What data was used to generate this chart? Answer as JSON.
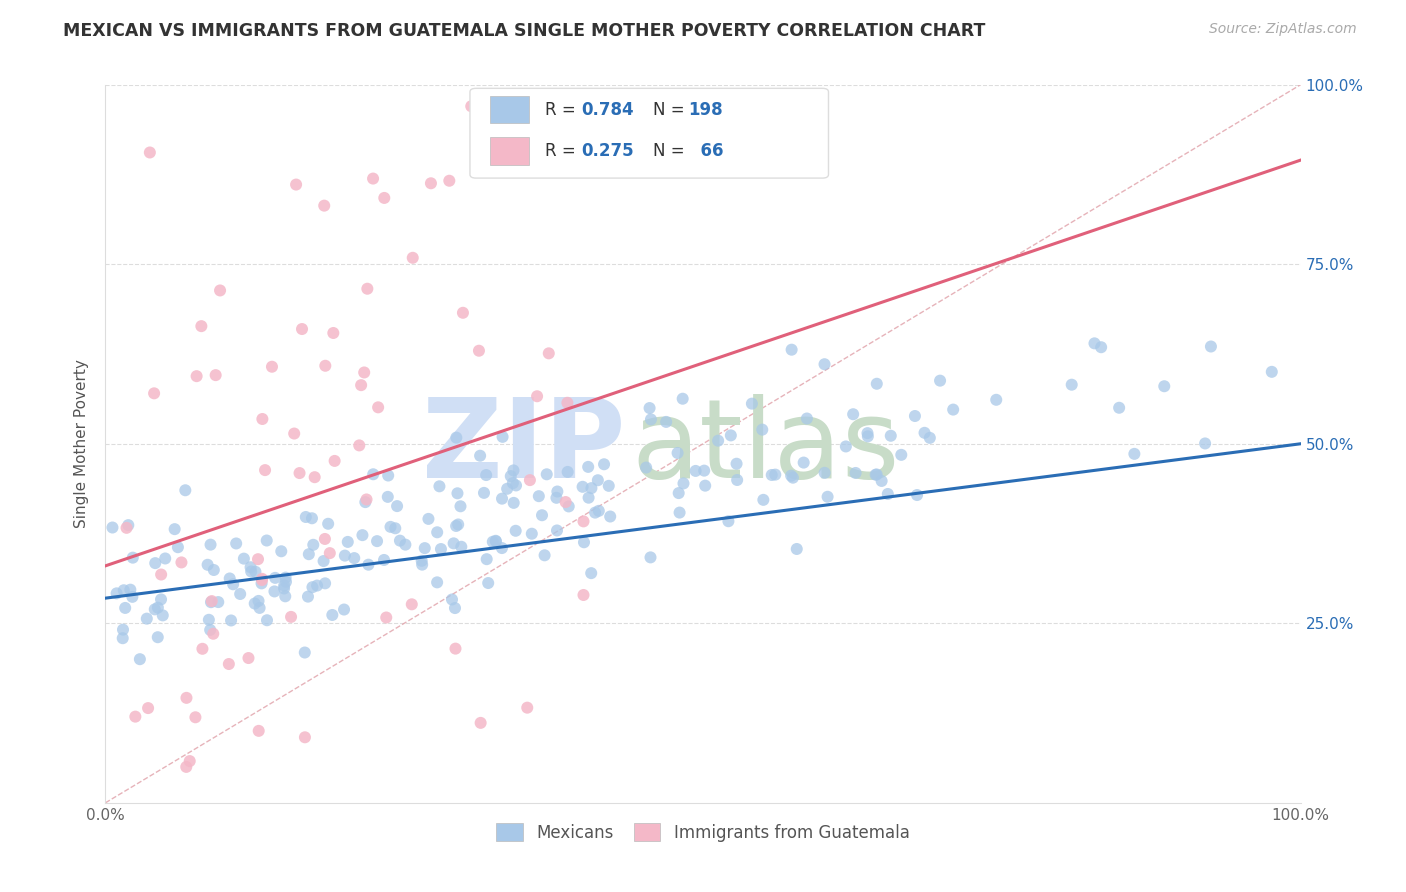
{
  "title": "MEXICAN VS IMMIGRANTS FROM GUATEMALA SINGLE MOTHER POVERTY CORRELATION CHART",
  "source": "Source: ZipAtlas.com",
  "ylabel": "Single Mother Poverty",
  "xlim": [
    0,
    1
  ],
  "ylim": [
    0,
    1
  ],
  "blue_R": 0.784,
  "blue_N": 198,
  "pink_R": 0.275,
  "pink_N": 66,
  "blue_color": "#a8c8e8",
  "pink_color": "#f4b8c8",
  "blue_line_color": "#2a6db5",
  "pink_line_color": "#e0607a",
  "diag_line_color": "#e0a0a8",
  "legend_text_color": "#333333",
  "legend_val_color": "#2a6db5",
  "grid_color": "#dddddd",
  "title_color": "#333333",
  "source_color": "#aaaaaa",
  "background_color": "#ffffff",
  "right_tick_color": "#2a6db5",
  "watermark_zip_color": "#d0dff5",
  "watermark_atlas_color": "#c8dcc8",
  "blue_line_x0": 0.0,
  "blue_line_x1": 1.0,
  "blue_line_y0": 0.285,
  "blue_line_y1": 0.5,
  "pink_line_x0": 0.0,
  "pink_line_x1": 1.0,
  "pink_line_y0": 0.33,
  "pink_line_y1": 0.895
}
